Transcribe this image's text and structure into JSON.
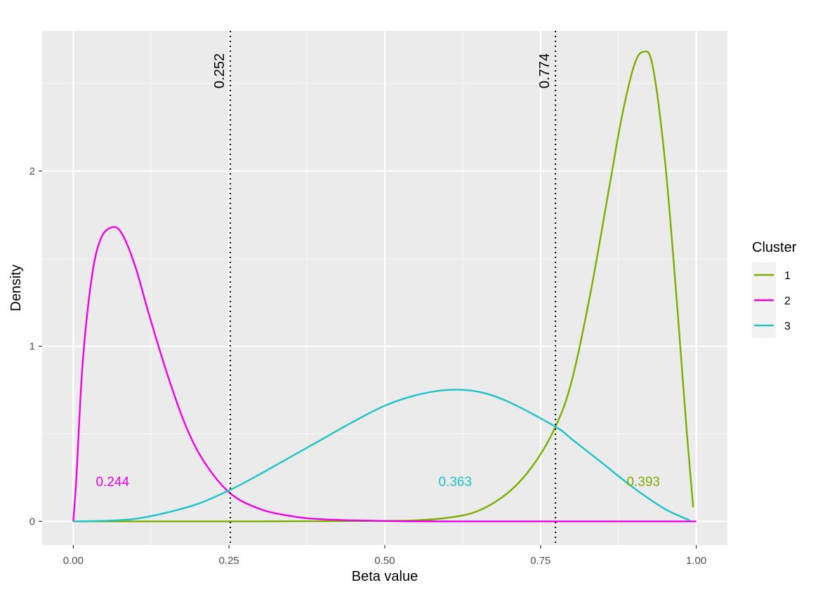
{
  "chart_data": {
    "type": "line",
    "xlabel": "Beta value",
    "ylabel": "Density",
    "xlim": [
      -0.05,
      1.05
    ],
    "ylim": [
      -0.135,
      2.8
    ],
    "x_ticks": [
      0.0,
      0.25,
      0.5,
      0.75,
      1.0
    ],
    "x_tick_labels": [
      "0.00",
      "0.25",
      "0.50",
      "0.75",
      "1.00"
    ],
    "y_ticks": [
      0,
      1,
      2
    ],
    "y_tick_labels": [
      "0",
      "1",
      "2"
    ],
    "grid": true,
    "legend": {
      "title": "Cluster",
      "position": "right",
      "entries": [
        {
          "label": "1",
          "color": "#7CAE00"
        },
        {
          "label": "2",
          "color": "#F000E8"
        },
        {
          "label": "3",
          "color": "#1EC3C8"
        }
      ]
    },
    "series": [
      {
        "name": "1",
        "color": "#7CAE00",
        "x": [
          0,
          0.1,
          0.2,
          0.3,
          0.4,
          0.5,
          0.55,
          0.6,
          0.65,
          0.7,
          0.74,
          0.774,
          0.8,
          0.83,
          0.86,
          0.88,
          0.9,
          0.915,
          0.93,
          0.95,
          0.97,
          0.985,
          0.995
        ],
        "y": [
          0,
          0,
          0,
          0,
          0.001,
          0.003,
          0.006,
          0.02,
          0.06,
          0.17,
          0.33,
          0.54,
          0.8,
          1.3,
          1.9,
          2.3,
          2.6,
          2.68,
          2.6,
          2.05,
          1.2,
          0.5,
          0.08
        ]
      },
      {
        "name": "2",
        "color": "#F000E8",
        "x": [
          0,
          0.005,
          0.015,
          0.03,
          0.045,
          0.065,
          0.08,
          0.1,
          0.12,
          0.15,
          0.18,
          0.21,
          0.252,
          0.3,
          0.35,
          0.4,
          0.5,
          0.6,
          0.8,
          1.0
        ],
        "y": [
          0,
          0.25,
          0.9,
          1.4,
          1.62,
          1.68,
          1.63,
          1.45,
          1.2,
          0.85,
          0.55,
          0.34,
          0.16,
          0.07,
          0.03,
          0.012,
          0.002,
          0,
          0,
          0
        ],
        "annotation": {
          "text": "0.244",
          "x": 0.063,
          "y": 0.23
        }
      },
      {
        "name": "3",
        "color": "#1EC3C8",
        "x": [
          0,
          0.05,
          0.1,
          0.15,
          0.2,
          0.252,
          0.3,
          0.35,
          0.4,
          0.45,
          0.5,
          0.55,
          0.6,
          0.65,
          0.7,
          0.774,
          0.8,
          0.85,
          0.9,
          0.95,
          0.99
        ],
        "y": [
          0,
          0.003,
          0.015,
          0.05,
          0.1,
          0.18,
          0.27,
          0.37,
          0.47,
          0.57,
          0.66,
          0.72,
          0.75,
          0.74,
          0.68,
          0.54,
          0.47,
          0.33,
          0.19,
          0.07,
          0.005
        ],
        "annotation": {
          "text": "0.363",
          "x": 0.613,
          "y": 0.23
        }
      }
    ],
    "annotations": [
      {
        "text": "0.393",
        "series": "1",
        "x": 0.915,
        "y": 0.23
      }
    ],
    "vlines": [
      {
        "x": 0.252,
        "label": "0.252"
      },
      {
        "x": 0.774,
        "label": "0.774"
      }
    ],
    "style": {
      "panel_bg": "#EBEBEB",
      "grid_major": "#FFFFFF",
      "grid_minor": "#F5F5F5"
    }
  }
}
